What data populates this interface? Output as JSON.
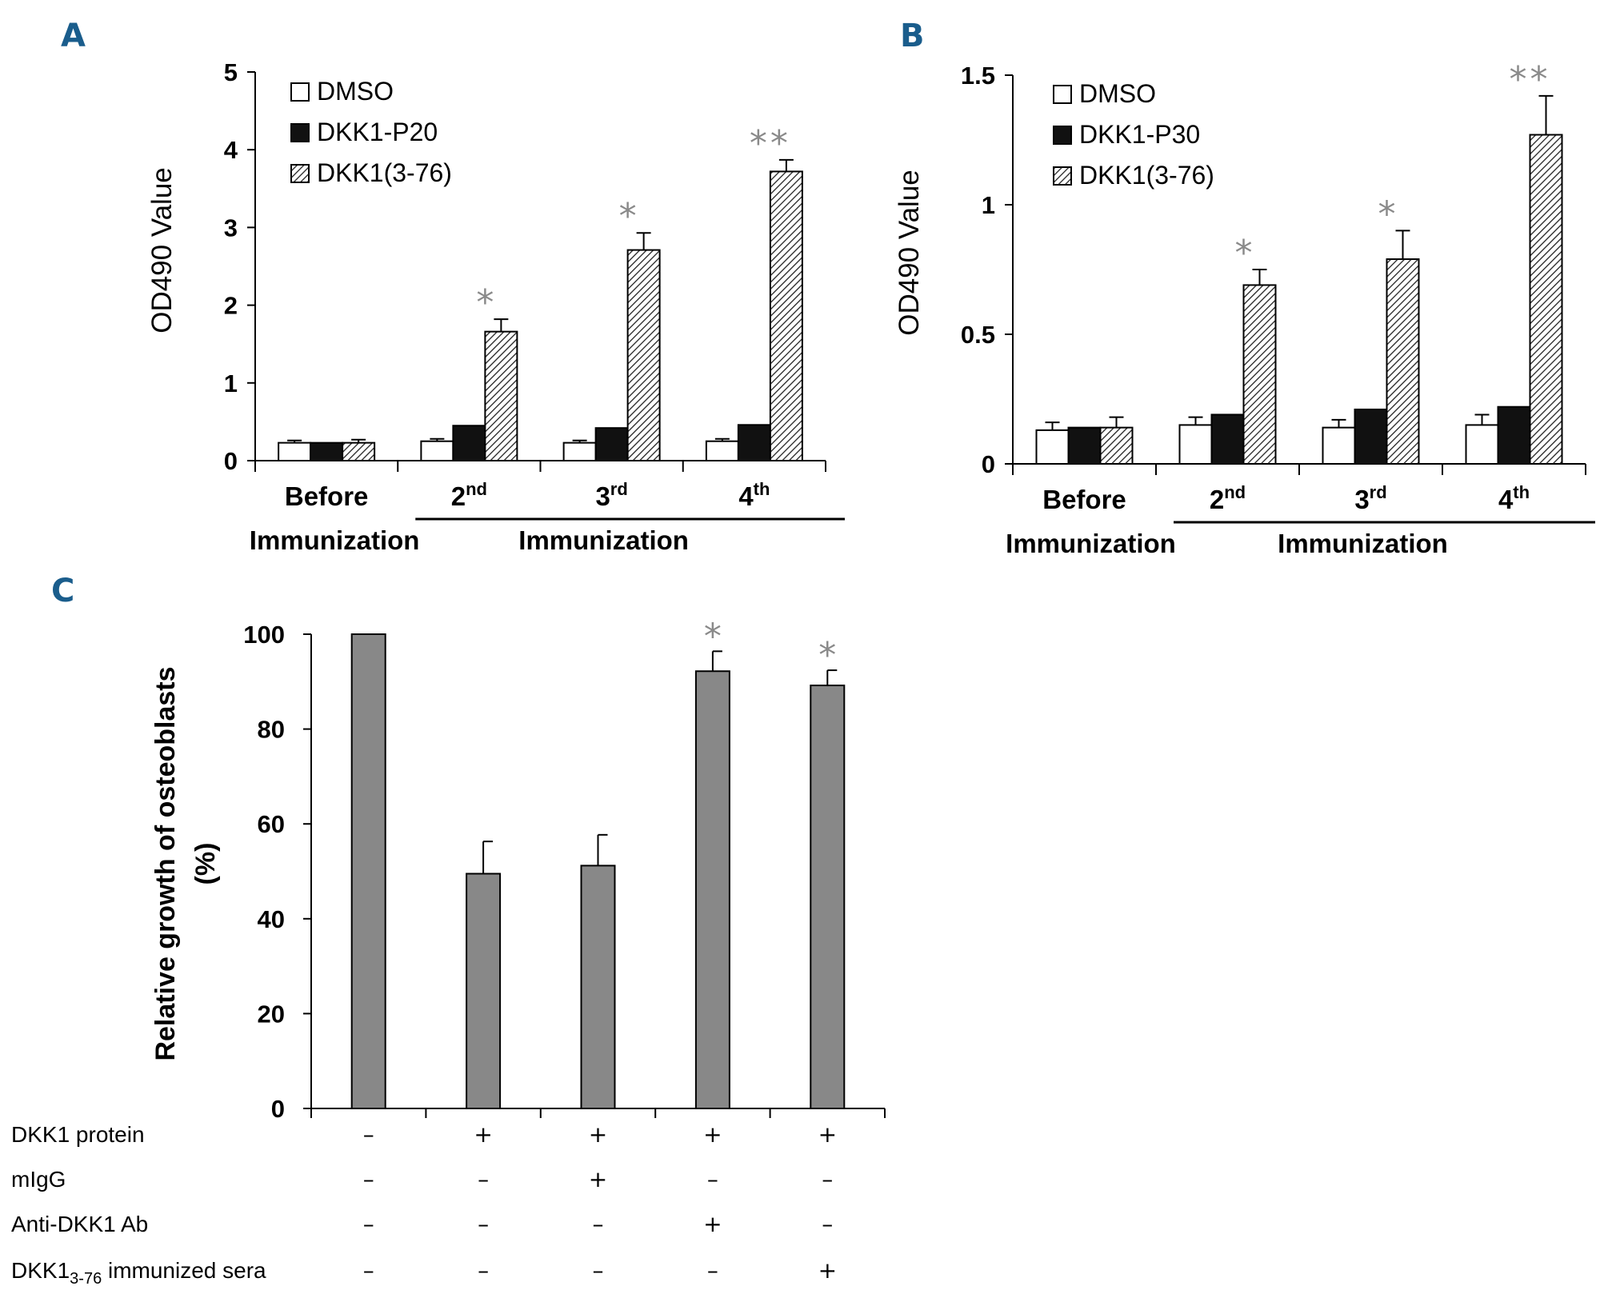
{
  "panels": {
    "A": {
      "letter": "A"
    },
    "B": {
      "letter": "B"
    },
    "C": {
      "letter": "C"
    }
  },
  "chart_data": [
    {
      "type": "bar",
      "panel": "A",
      "ylabel": "OD490 Value",
      "ylim": [
        0,
        5
      ],
      "yticks": [
        "0",
        "1",
        "2",
        "3",
        "4",
        "5"
      ],
      "categories": [
        {
          "main": "Before",
          "sup": ""
        },
        {
          "main": "2",
          "sup": "nd"
        },
        {
          "main": "3",
          "sup": "rd"
        },
        {
          "main": "4",
          "sup": "th"
        }
      ],
      "group_labels": {
        "before": "Immunization",
        "after": "Immunization"
      },
      "series": [
        {
          "name": "DMSO",
          "pattern": "white",
          "values": [
            0.23,
            0.25,
            0.23,
            0.25
          ],
          "errors": [
            0.03,
            0.03,
            0.03,
            0.03
          ]
        },
        {
          "name": "DKK1-P20",
          "pattern": "black",
          "values": [
            0.23,
            0.45,
            0.42,
            0.46
          ],
          "errors": [
            0,
            0,
            0,
            0
          ]
        },
        {
          "name": "DKK1(3-76)",
          "pattern": "hatch",
          "values": [
            0.23,
            1.66,
            2.71,
            3.72
          ],
          "errors": [
            0.04,
            0.16,
            0.22,
            0.15
          ]
        }
      ],
      "significance": [
        "",
        "*",
        "*",
        "**"
      ]
    },
    {
      "type": "bar",
      "panel": "B",
      "ylabel": "OD490 Value",
      "ylim": [
        0,
        1.5
      ],
      "yticks": [
        "0",
        "0.5",
        "1",
        "1.5"
      ],
      "categories": [
        {
          "main": "Before",
          "sup": ""
        },
        {
          "main": "2",
          "sup": "nd"
        },
        {
          "main": "3",
          "sup": "rd"
        },
        {
          "main": "4",
          "sup": "th"
        }
      ],
      "group_labels": {
        "before": "Immunization",
        "after": "Immunization"
      },
      "series": [
        {
          "name": "DMSO",
          "pattern": "white",
          "values": [
            0.13,
            0.15,
            0.14,
            0.15
          ],
          "errors": [
            0.03,
            0.03,
            0.03,
            0.04
          ]
        },
        {
          "name": "DKK1-P30",
          "pattern": "black",
          "values": [
            0.14,
            0.19,
            0.21,
            0.22
          ],
          "errors": [
            0,
            0,
            0,
            0
          ]
        },
        {
          "name": "DKK1(3-76)",
          "pattern": "hatch",
          "values": [
            0.14,
            0.69,
            0.79,
            1.27
          ],
          "errors": [
            0.04,
            0.06,
            0.11,
            0.15
          ]
        }
      ],
      "significance": [
        "",
        "*",
        "*",
        "**"
      ]
    },
    {
      "type": "bar",
      "panel": "C",
      "ylabel": "Relative growth of osteoblasts",
      "ylabel_line2": "(%)",
      "ylim": [
        0,
        100
      ],
      "yticks": [
        "0",
        "20",
        "40",
        "60",
        "80",
        "100"
      ],
      "values": [
        100,
        49.5,
        51.2,
        92.2,
        89.2
      ],
      "errors": [
        0,
        6.8,
        6.5,
        4.2,
        3.2
      ],
      "significance": [
        "",
        "",
        "",
        "*",
        "*"
      ],
      "bar_color": "#888888",
      "conditions": [
        {
          "label": "DKK1 protein",
          "signs": [
            "–",
            "+",
            "+",
            "+",
            "+"
          ]
        },
        {
          "label": "mIgG",
          "signs": [
            "–",
            "–",
            "+",
            "–",
            "–"
          ]
        },
        {
          "label": "Anti-DKK1 Ab",
          "signs": [
            "–",
            "–",
            "–",
            "+",
            "–"
          ]
        },
        {
          "label_main": "DKK1",
          "label_sub": "3-76",
          "label_rest": " immunized sera",
          "signs": [
            "–",
            "–",
            "–",
            "–",
            "+"
          ]
        }
      ]
    }
  ]
}
